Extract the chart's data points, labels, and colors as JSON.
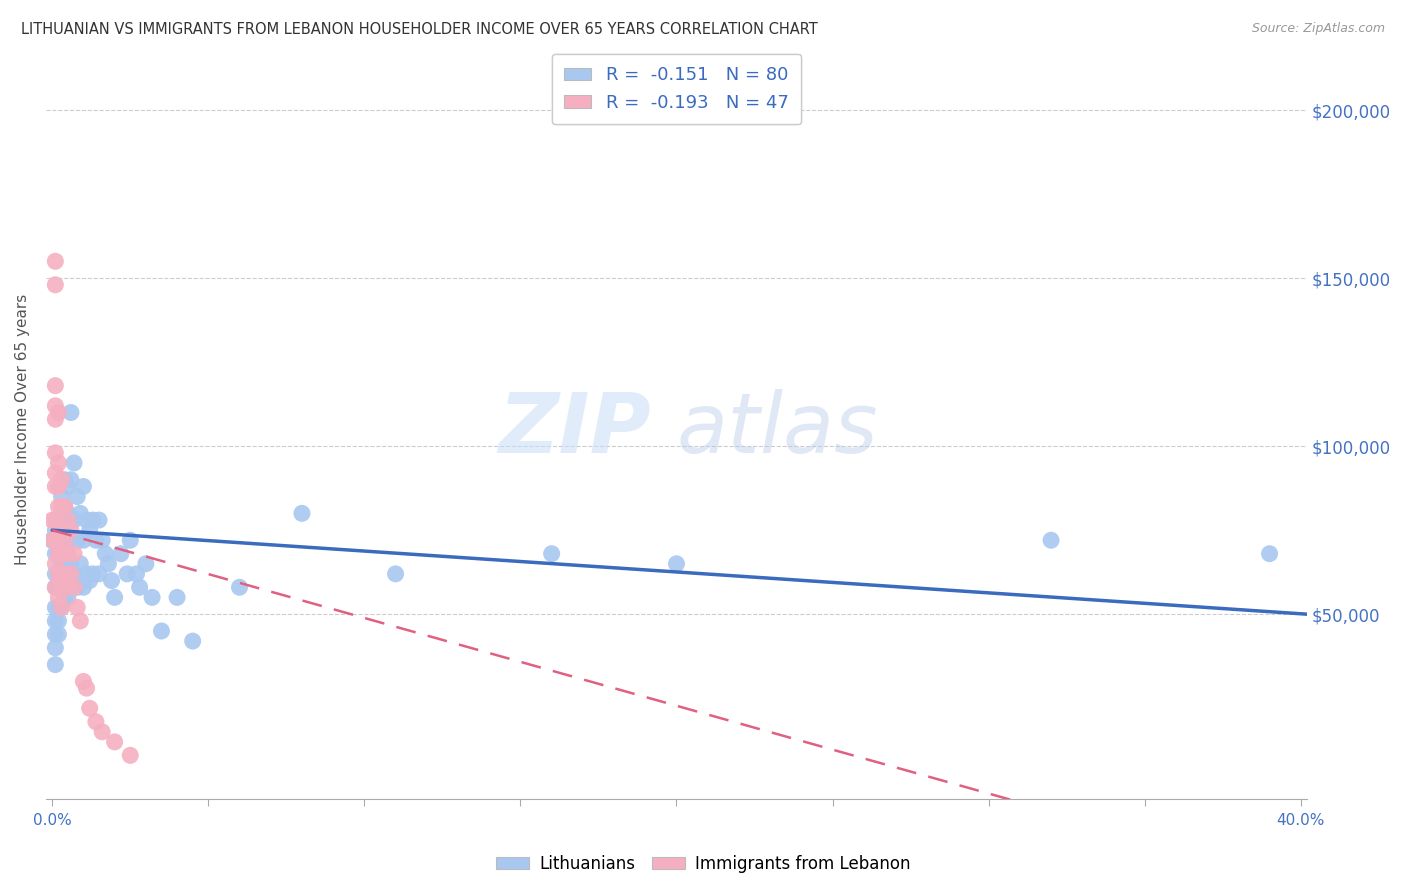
{
  "title": "LITHUANIAN VS IMMIGRANTS FROM LEBANON HOUSEHOLDER INCOME OVER 65 YEARS CORRELATION CHART",
  "source": "Source: ZipAtlas.com",
  "ylabel": "Householder Income Over 65 years",
  "legend_bottom": [
    "Lithuanians",
    "Immigrants from Lebanon"
  ],
  "R_blue": -0.151,
  "N_blue": 80,
  "R_pink": -0.193,
  "N_pink": 47,
  "blue_color": "#a8c8f0",
  "pink_color": "#f5afc0",
  "blue_line_color": "#3a6bbf",
  "pink_line_color": "#e06080",
  "right_axis_color": "#4472c4",
  "ytick_labels": [
    "$50,000",
    "$100,000",
    "$150,000",
    "$200,000"
  ],
  "ytick_values": [
    50000,
    100000,
    150000,
    200000
  ],
  "ylim": [
    -5000,
    215000
  ],
  "xlim": [
    -0.002,
    0.402
  ],
  "watermark_zip": "ZIP",
  "watermark_atlas": "atlas",
  "blue_x": [
    0.0,
    0.001,
    0.001,
    0.001,
    0.001,
    0.001,
    0.001,
    0.001,
    0.001,
    0.001,
    0.002,
    0.002,
    0.002,
    0.002,
    0.002,
    0.002,
    0.002,
    0.002,
    0.003,
    0.003,
    0.003,
    0.003,
    0.003,
    0.003,
    0.004,
    0.004,
    0.004,
    0.004,
    0.004,
    0.005,
    0.005,
    0.005,
    0.005,
    0.005,
    0.006,
    0.006,
    0.006,
    0.006,
    0.007,
    0.007,
    0.007,
    0.008,
    0.008,
    0.008,
    0.009,
    0.009,
    0.01,
    0.01,
    0.01,
    0.011,
    0.011,
    0.012,
    0.012,
    0.013,
    0.013,
    0.014,
    0.015,
    0.015,
    0.016,
    0.017,
    0.018,
    0.019,
    0.02,
    0.022,
    0.024,
    0.025,
    0.027,
    0.028,
    0.03,
    0.032,
    0.035,
    0.04,
    0.045,
    0.06,
    0.08,
    0.11,
    0.16,
    0.2,
    0.32,
    0.39
  ],
  "blue_y": [
    72000,
    75000,
    68000,
    62000,
    58000,
    52000,
    48000,
    44000,
    40000,
    35000,
    78000,
    72000,
    68000,
    62000,
    58000,
    52000,
    48000,
    44000,
    85000,
    78000,
    72000,
    65000,
    58000,
    52000,
    90000,
    82000,
    72000,
    65000,
    55000,
    88000,
    80000,
    72000,
    65000,
    55000,
    110000,
    90000,
    78000,
    65000,
    95000,
    78000,
    62000,
    85000,
    72000,
    58000,
    80000,
    65000,
    88000,
    72000,
    58000,
    78000,
    62000,
    75000,
    60000,
    78000,
    62000,
    72000,
    78000,
    62000,
    72000,
    68000,
    65000,
    60000,
    55000,
    68000,
    62000,
    72000,
    62000,
    58000,
    65000,
    55000,
    45000,
    55000,
    42000,
    58000,
    80000,
    62000,
    68000,
    65000,
    72000,
    68000
  ],
  "pink_x": [
    0.0,
    0.0,
    0.001,
    0.001,
    0.001,
    0.001,
    0.001,
    0.001,
    0.001,
    0.001,
    0.001,
    0.001,
    0.001,
    0.001,
    0.002,
    0.002,
    0.002,
    0.002,
    0.002,
    0.002,
    0.002,
    0.002,
    0.003,
    0.003,
    0.003,
    0.003,
    0.003,
    0.003,
    0.004,
    0.004,
    0.004,
    0.005,
    0.005,
    0.005,
    0.006,
    0.006,
    0.007,
    0.007,
    0.008,
    0.009,
    0.01,
    0.011,
    0.012,
    0.014,
    0.016,
    0.02,
    0.025
  ],
  "pink_y": [
    78000,
    72000,
    155000,
    148000,
    118000,
    112000,
    108000,
    98000,
    92000,
    88000,
    78000,
    72000,
    65000,
    58000,
    110000,
    95000,
    88000,
    82000,
    75000,
    68000,
    62000,
    55000,
    90000,
    82000,
    75000,
    68000,
    60000,
    52000,
    82000,
    72000,
    62000,
    78000,
    68000,
    58000,
    75000,
    62000,
    68000,
    58000,
    52000,
    48000,
    30000,
    28000,
    22000,
    18000,
    15000,
    12000,
    8000
  ]
}
